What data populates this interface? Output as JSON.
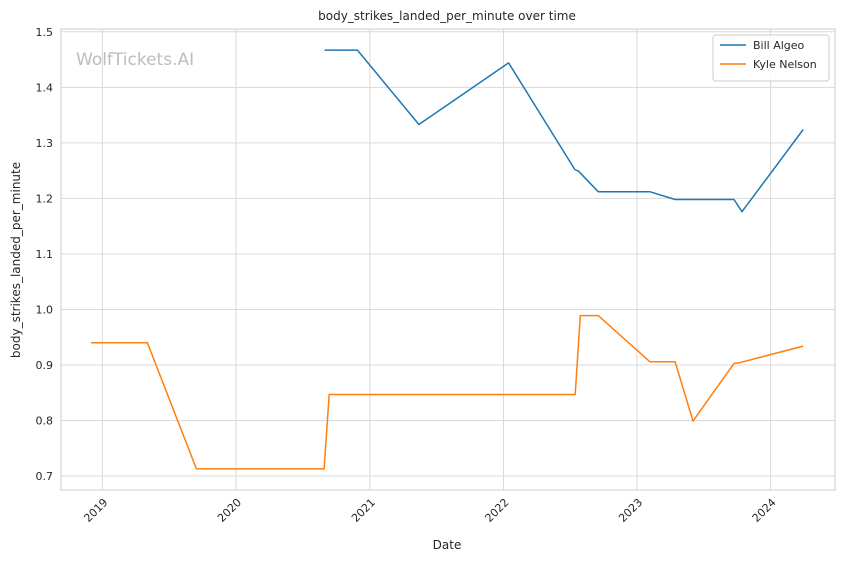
{
  "chart_data": {
    "type": "line",
    "title": "body_strikes_landed_per_minute over time",
    "xlabel": "Date",
    "ylabel": "body_strikes_landed_per_minute",
    "watermark": "WolfTickets.AI",
    "x_type": "date",
    "xlim": [
      "2018-09-10",
      "2024-06-25"
    ],
    "ylim": [
      0.675,
      1.505
    ],
    "y_ticks": [
      0.7,
      0.8,
      0.9,
      1.0,
      1.1,
      1.2,
      1.3,
      1.4,
      1.5
    ],
    "y_tick_labels": [
      "0.7",
      "0.8",
      "0.9",
      "1.0",
      "1.1",
      "1.2",
      "1.3",
      "1.4",
      "1.5"
    ],
    "x_ticks": [
      "2019-01-01",
      "2020-01-01",
      "2021-01-01",
      "2022-01-01",
      "2023-01-01",
      "2024-01-01"
    ],
    "x_tick_labels": [
      "2019",
      "2020",
      "2021",
      "2022",
      "2023",
      "2024"
    ],
    "grid": true,
    "legend_position": "top-right",
    "series": [
      {
        "name": "Bill Algeo",
        "color": "#1f77b4",
        "points": [
          {
            "x": "2020-08-30",
            "y": 1.467
          },
          {
            "x": "2020-11-28",
            "y": 1.467
          },
          {
            "x": "2021-05-15",
            "y": 1.333
          },
          {
            "x": "2022-01-15",
            "y": 1.444
          },
          {
            "x": "2022-07-15",
            "y": 1.252
          },
          {
            "x": "2022-07-25",
            "y": 1.249
          },
          {
            "x": "2022-09-17",
            "y": 1.212
          },
          {
            "x": "2023-02-05",
            "y": 1.212
          },
          {
            "x": "2023-04-15",
            "y": 1.198
          },
          {
            "x": "2023-09-23",
            "y": 1.198
          },
          {
            "x": "2023-10-15",
            "y": 1.176
          },
          {
            "x": "2024-03-30",
            "y": 1.324
          }
        ]
      },
      {
        "name": "Kyle Nelson",
        "color": "#ff7f0e",
        "points": [
          {
            "x": "2018-12-01",
            "y": 0.94
          },
          {
            "x": "2019-05-04",
            "y": 0.94
          },
          {
            "x": "2019-09-15",
            "y": 0.713
          },
          {
            "x": "2020-08-29",
            "y": 0.713
          },
          {
            "x": "2020-09-12",
            "y": 0.847
          },
          {
            "x": "2022-07-16",
            "y": 0.847
          },
          {
            "x": "2022-07-30",
            "y": 0.989
          },
          {
            "x": "2022-09-17",
            "y": 0.989
          },
          {
            "x": "2023-02-05",
            "y": 0.906
          },
          {
            "x": "2023-04-15",
            "y": 0.906
          },
          {
            "x": "2023-06-03",
            "y": 0.799
          },
          {
            "x": "2023-09-23",
            "y": 0.903
          },
          {
            "x": "2023-10-07",
            "y": 0.904
          },
          {
            "x": "2024-03-30",
            "y": 0.934
          }
        ]
      }
    ]
  }
}
